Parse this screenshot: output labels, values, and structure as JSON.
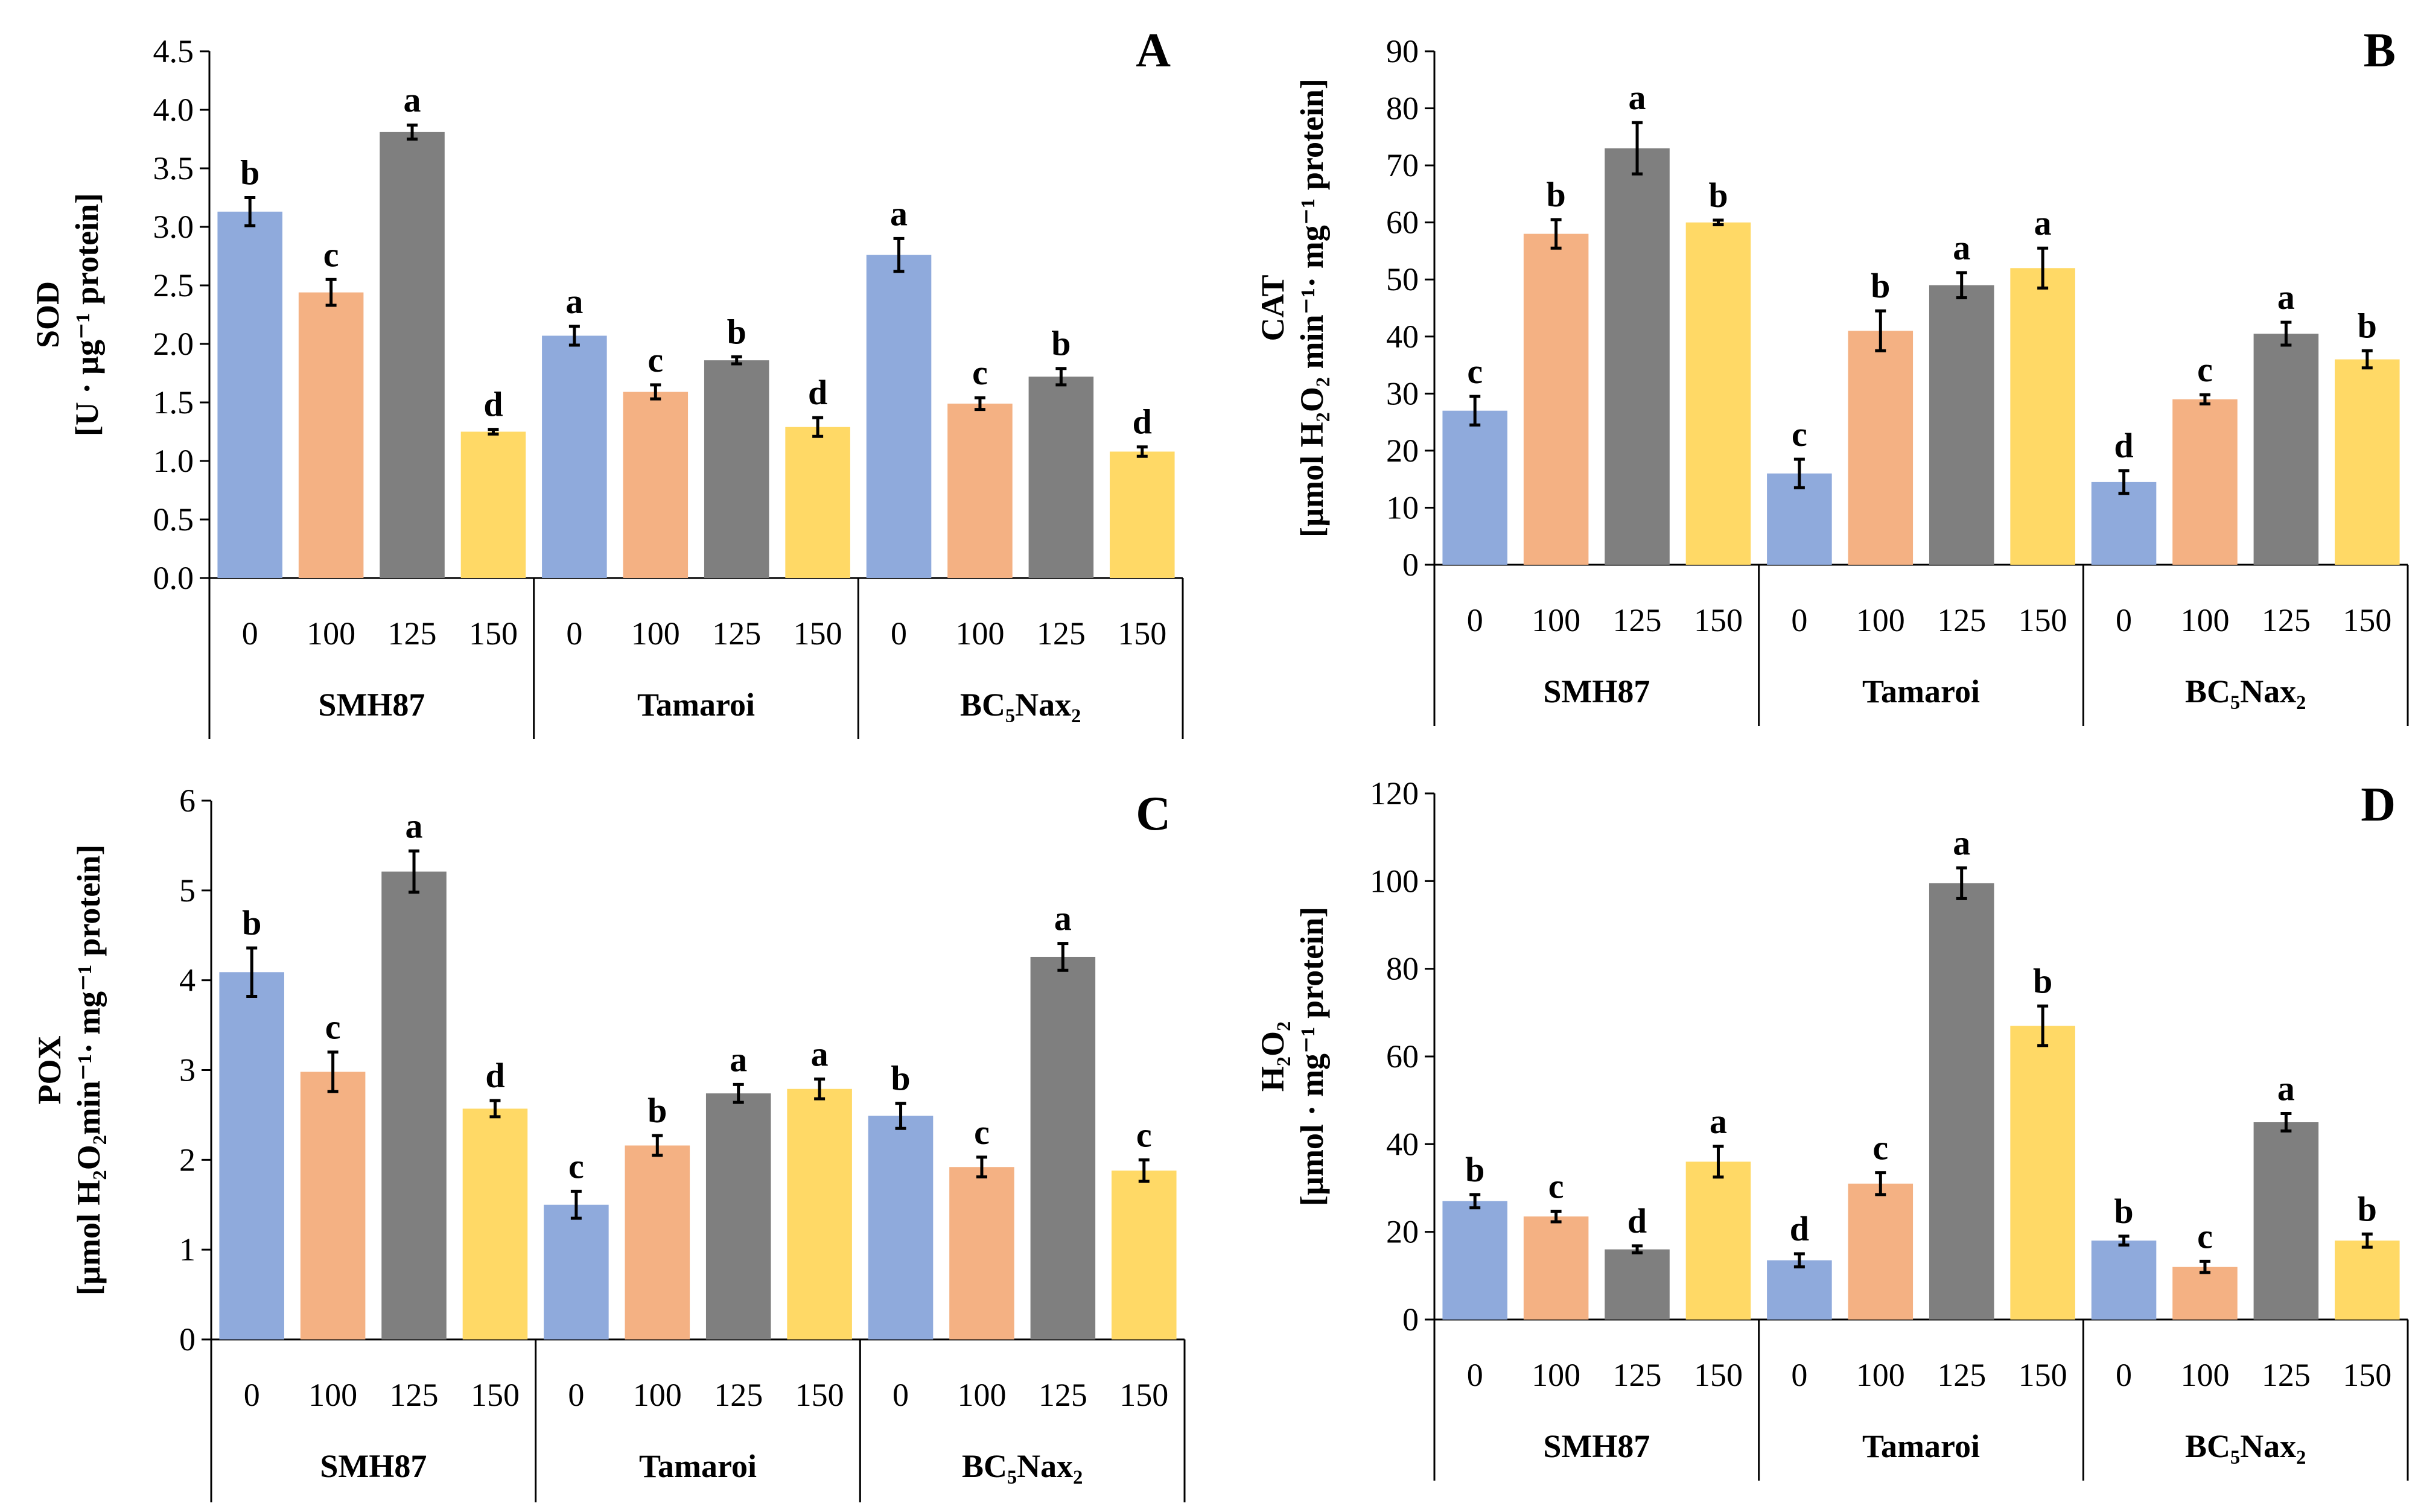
{
  "figure": {
    "colors": {
      "c0": "#8FAADC",
      "c100": "#F4B183",
      "c125": "#7F7F7F",
      "c150": "#FFD966",
      "axis": "#000000"
    }
  },
  "chart_data": [
    {
      "panel": "A",
      "type": "bar",
      "ylabel_top": "SOD",
      "ylabel_bottom": "[U · µg⁻¹ protein]",
      "ylim": [
        0,
        4.5
      ],
      "yticks": [
        "0.0",
        "0.5",
        "1.0",
        "1.5",
        "2.0",
        "2.5",
        "3.0",
        "3.5",
        "4.0",
        "4.5"
      ],
      "ytick_values": [
        0,
        0.5,
        1,
        1.5,
        2,
        2.5,
        3,
        3.5,
        4,
        4.5
      ],
      "treatments": [
        "0",
        "100",
        "125",
        "150"
      ],
      "groups": [
        {
          "name": "SMH87",
          "values": [
            3.13,
            2.44,
            3.81,
            1.25
          ],
          "errors": [
            0.12,
            0.11,
            0.06,
            0.02
          ],
          "letters": [
            "b",
            "c",
            "a",
            "d"
          ]
        },
        {
          "name": "Tamaroi",
          "values": [
            2.07,
            1.59,
            1.86,
            1.29
          ],
          "errors": [
            0.08,
            0.06,
            0.03,
            0.08
          ],
          "letters": [
            "a",
            "c",
            "b",
            "d"
          ]
        },
        {
          "name": "BC₅Nax₂",
          "values": [
            2.76,
            1.49,
            1.72,
            1.08
          ],
          "errors": [
            0.14,
            0.05,
            0.07,
            0.04
          ],
          "letters": [
            "a",
            "c",
            "b",
            "d"
          ]
        }
      ]
    },
    {
      "panel": "B",
      "type": "bar",
      "ylabel_top": "CAT",
      "ylabel_bottom": "[µmol H₂O₂ min⁻¹· mg⁻¹ protein]",
      "ylim": [
        0,
        90
      ],
      "yticks": [
        "0",
        "10",
        "20",
        "30",
        "40",
        "50",
        "60",
        "70",
        "80",
        "90"
      ],
      "ytick_values": [
        0,
        10,
        20,
        30,
        40,
        50,
        60,
        70,
        80,
        90
      ],
      "treatments": [
        "0",
        "100",
        "125",
        "150"
      ],
      "groups": [
        {
          "name": "SMH87",
          "values": [
            27.0,
            58.0,
            73.0,
            60.0
          ],
          "errors": [
            2.5,
            2.5,
            4.5,
            0.4
          ],
          "letters": [
            "c",
            "b",
            "a",
            "b"
          ]
        },
        {
          "name": "Tamaroi",
          "values": [
            16.0,
            41.0,
            49.0,
            52.0
          ],
          "errors": [
            2.5,
            3.5,
            2.2,
            3.5
          ],
          "letters": [
            "c",
            "b",
            "a",
            "a"
          ]
        },
        {
          "name": "BC₅Nax₂",
          "values": [
            14.5,
            29.0,
            40.5,
            36.0
          ],
          "errors": [
            2.0,
            0.8,
            2.0,
            1.5
          ],
          "letters": [
            "d",
            "c",
            "a",
            "b"
          ]
        }
      ]
    },
    {
      "panel": "C",
      "type": "bar",
      "ylabel_top": "POX",
      "ylabel_bottom": "[µmol H₂O₂min⁻¹· mg⁻¹ protein]",
      "ylim": [
        0,
        6
      ],
      "yticks": [
        "0",
        "1",
        "2",
        "3",
        "4",
        "5",
        "6"
      ],
      "ytick_values": [
        0,
        1,
        2,
        3,
        4,
        5,
        6
      ],
      "treatments": [
        "0",
        "100",
        "125",
        "150"
      ],
      "groups": [
        {
          "name": "SMH87",
          "values": [
            4.09,
            2.98,
            5.21,
            2.57
          ],
          "errors": [
            0.27,
            0.22,
            0.23,
            0.09
          ],
          "letters": [
            "b",
            "c",
            "a",
            "d"
          ]
        },
        {
          "name": "Tamaroi",
          "values": [
            1.5,
            2.16,
            2.74,
            2.79
          ],
          "errors": [
            0.15,
            0.11,
            0.1,
            0.11
          ],
          "letters": [
            "c",
            "b",
            "a",
            "a"
          ]
        },
        {
          "name": "BC₅Nax₂",
          "values": [
            2.49,
            1.92,
            4.26,
            1.88
          ],
          "errors": [
            0.14,
            0.11,
            0.15,
            0.12
          ],
          "letters": [
            "b",
            "c",
            "a",
            "c"
          ]
        }
      ]
    },
    {
      "panel": "D",
      "type": "bar",
      "ylabel_top": "H₂O₂",
      "ylabel_bottom": "[µmol · mg⁻¹ protein]",
      "ylim": [
        0,
        120
      ],
      "yticks": [
        "0",
        "20",
        "40",
        "60",
        "80",
        "100",
        "120"
      ],
      "ytick_values": [
        0,
        20,
        40,
        60,
        80,
        100,
        120
      ],
      "treatments": [
        "0",
        "100",
        "125",
        "150"
      ],
      "groups": [
        {
          "name": "SMH87",
          "values": [
            27.0,
            23.5,
            16.0,
            36.0
          ],
          "errors": [
            1.5,
            1.2,
            0.8,
            3.5
          ],
          "letters": [
            "b",
            "c",
            "d",
            "a"
          ]
        },
        {
          "name": "Tamaroi",
          "values": [
            13.5,
            31.0,
            99.5,
            67.0
          ],
          "errors": [
            1.5,
            2.5,
            3.5,
            4.5
          ],
          "letters": [
            "d",
            "c",
            "a",
            "b"
          ]
        },
        {
          "name": "BC₅Nax₂",
          "values": [
            18.0,
            12.0,
            45.0,
            18.0
          ],
          "errors": [
            1.0,
            1.3,
            2.0,
            1.5
          ],
          "letters": [
            "b",
            "c",
            "a",
            "b"
          ]
        }
      ]
    }
  ]
}
